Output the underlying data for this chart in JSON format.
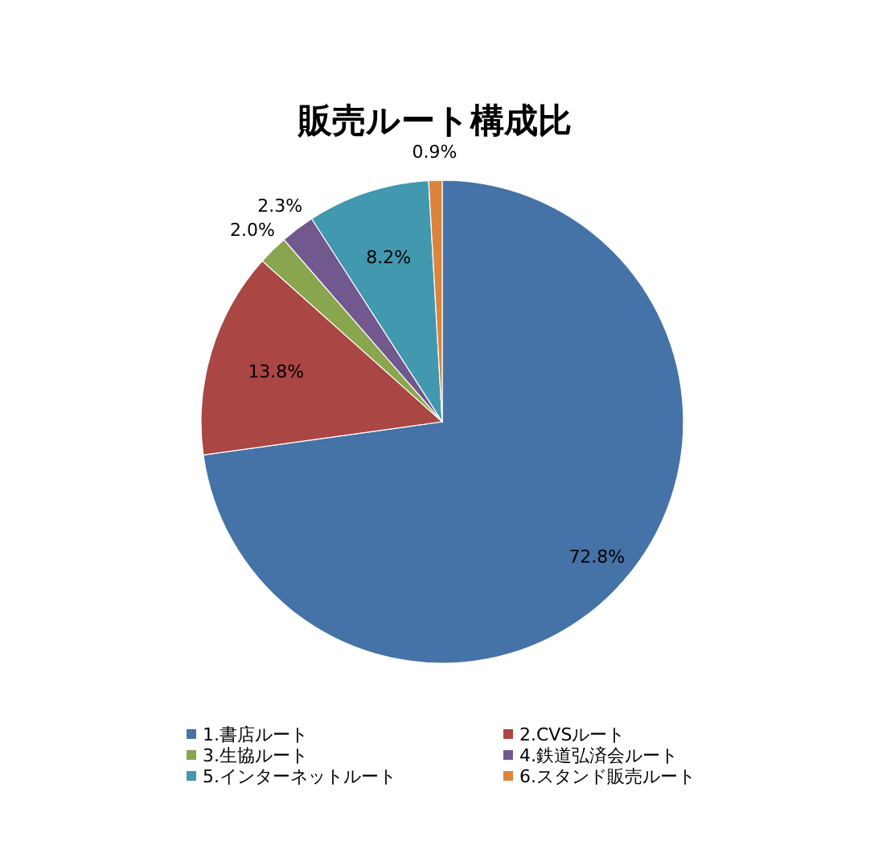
{
  "chart_data": {
    "type": "pie",
    "title": "販売ルート構成比",
    "categories": [
      "1.書店ルート",
      "2.CVSルート",
      "3.生協ルート",
      "4.鉄道弘済会ルート",
      "5.インターネットルート",
      "6.スタンド販売ルート"
    ],
    "values": [
      72.8,
      13.8,
      2.0,
      2.3,
      8.2,
      0.9
    ],
    "colors": [
      "#4572a7",
      "#aa4643",
      "#89a54e",
      "#71588f",
      "#4198af",
      "#db843d"
    ],
    "value_labels": [
      "72.8%",
      "13.8%",
      "2.0%",
      "2.3%",
      "8.2%",
      "0.9%"
    ],
    "legend": "bottom"
  }
}
